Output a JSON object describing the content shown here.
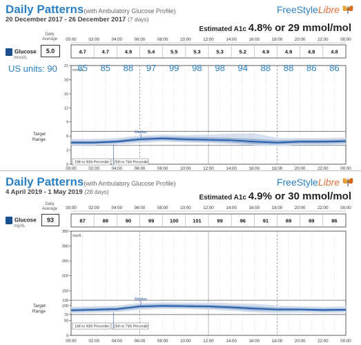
{
  "reports": [
    {
      "title": "Daily Patterns",
      "subtitle": "(with Ambulatory Glucose Profile)",
      "date_range": "20 December 2017 - 26 December 2017",
      "days": "(7 days)",
      "logo": {
        "part1": "FreeStyle",
        "part2": "Libre"
      },
      "a1c_label": "Estimated A1c",
      "a1c_value": "4.8% or 29 mmol/mol",
      "glucose_label": "Glucose",
      "glucose_unit": "mmol/L",
      "avg_header": "Daily Average",
      "daily_average": "5.0",
      "us_units_label": "US units: 90",
      "target_label": "Target Range",
      "median_label": "Median",
      "legend_outer": "10th to 90th Percentile",
      "legend_inner": "25th to 75th Percentile",
      "unit_axis_label": "mmol/L",
      "times": [
        "00:00",
        "02:00",
        "04:00",
        "06:00",
        "08:00",
        "10:00",
        "12:00",
        "14:00",
        "16:00",
        "18:00",
        "20:00",
        "22:00",
        "00:00"
      ],
      "hourly_averages": [
        "4.7",
        "4.7",
        "4.9",
        "5.4",
        "5.5",
        "5.3",
        "5.3",
        "5.2",
        "4.9",
        "4.9",
        "4.8",
        "4.8"
      ],
      "us_conversions": [
        "85",
        "85",
        "88",
        "97",
        "99",
        "98",
        "98",
        "94",
        "88",
        "88",
        "86",
        "86"
      ],
      "ytick_labels": [
        "21",
        "18",
        "15",
        "12",
        "9",
        "6",
        "3",
        "0"
      ]
    },
    {
      "title": "Daily Patterns",
      "subtitle": "(with Ambulatory Glucose Profile)",
      "date_range": "4 April 2019 - 1 May 2019",
      "days": "(28 days)",
      "logo": {
        "part1": "FreeStyle",
        "part2": "Libre"
      },
      "a1c_label": "Estimated A1c",
      "a1c_value": "4.9% or 30 mmol/mol",
      "glucose_label": "Glucose",
      "glucose_unit": "mg/dL",
      "avg_header": "Daily Average",
      "daily_average": "93",
      "target_label": "Target Range",
      "median_label": "Median",
      "legend_outer": "10th to 90th Percentile",
      "legend_inner": "25th to 75th Percentile",
      "unit_axis_label": "mg/dL",
      "times": [
        "00:00",
        "02:00",
        "04:00",
        "06:00",
        "08:00",
        "10:00",
        "12:00",
        "14:00",
        "16:00",
        "18:00",
        "20:00",
        "22:00",
        "00:00"
      ],
      "hourly_averages": [
        "87",
        "89",
        "90",
        "99",
        "100",
        "101",
        "99",
        "96",
        "91",
        "89",
        "89",
        "86"
      ],
      "ytick_labels": [
        "350",
        "300",
        "250",
        "200",
        "150",
        "118",
        "100",
        "70",
        "50",
        "0"
      ]
    }
  ],
  "chart_data": [
    {
      "type": "area",
      "title": "Daily Patterns",
      "x": [
        0,
        2,
        4,
        6,
        8,
        10,
        12,
        14,
        16,
        18,
        20,
        22,
        24
      ],
      "y_unit": "mmol/L",
      "ylim": [
        0,
        21
      ],
      "target_range": [
        4,
        7
      ],
      "series": [
        {
          "name": "Median",
          "values": [
            4.6,
            4.6,
            4.8,
            5.3,
            5.5,
            5.3,
            5.2,
            5.1,
            4.8,
            4.6,
            4.8,
            4.8,
            4.9
          ]
        },
        {
          "name": "25th to 75th Percentile",
          "low": [
            4.3,
            4.3,
            4.5,
            4.9,
            5.1,
            4.9,
            4.8,
            4.6,
            4.3,
            4.2,
            4.4,
            4.4,
            4.5
          ],
          "high": [
            5.0,
            5.0,
            5.2,
            5.7,
            5.9,
            5.8,
            5.7,
            5.6,
            5.4,
            5.1,
            5.2,
            5.2,
            5.3
          ]
        },
        {
          "name": "10th to 90th Percentile",
          "low": [
            4.0,
            4.0,
            4.2,
            4.5,
            4.8,
            4.6,
            4.5,
            4.3,
            4.0,
            3.9,
            4.1,
            4.1,
            4.2
          ],
          "high": [
            5.4,
            5.4,
            5.6,
            6.1,
            6.3,
            6.2,
            6.3,
            6.5,
            6.6,
            5.6,
            5.6,
            5.6,
            5.7
          ]
        }
      ]
    },
    {
      "type": "area",
      "title": "Daily Patterns",
      "x": [
        0,
        2,
        4,
        6,
        8,
        10,
        12,
        14,
        16,
        18,
        20,
        22,
        24
      ],
      "y_unit": "mg/dL",
      "ylim": [
        0,
        350
      ],
      "target_range": [
        70,
        118
      ],
      "series": [
        {
          "name": "Median",
          "values": [
            84,
            86,
            88,
            97,
            99,
            98,
            97,
            94,
            90,
            87,
            87,
            85,
            86
          ]
        },
        {
          "name": "25th to 75th Percentile",
          "low": [
            79,
            81,
            83,
            91,
            94,
            93,
            91,
            88,
            83,
            81,
            82,
            80,
            81
          ],
          "high": [
            90,
            92,
            94,
            103,
            105,
            104,
            103,
            100,
            97,
            93,
            92,
            90,
            91
          ]
        },
        {
          "name": "10th to 90th Percentile",
          "low": [
            74,
            76,
            78,
            85,
            89,
            88,
            86,
            82,
            77,
            75,
            76,
            75,
            76
          ],
          "high": [
            96,
            98,
            100,
            109,
            111,
            110,
            110,
            108,
            106,
            100,
            98,
            96,
            97
          ]
        }
      ]
    }
  ],
  "colors": {
    "title": "#2a7fc1",
    "median": "#1f5aa6",
    "band_inner": "#9db3d6",
    "band_outer": "#d5dfee",
    "target_line": "#666666"
  }
}
